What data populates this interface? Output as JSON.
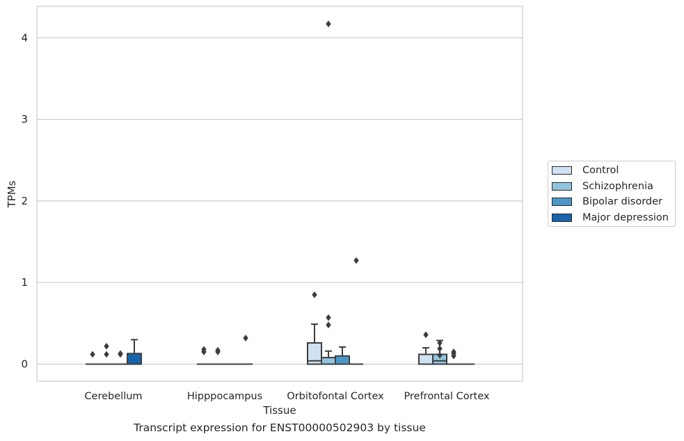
{
  "caption": "Transcript expression for ENST00000502903 by tissue",
  "chart_data": {
    "type": "box",
    "xlabel": "Tissue",
    "ylabel": "TPMs",
    "categories": [
      "Cerebellum",
      "Hipppocampus",
      "Orbitofontal Cortex",
      "Prefrontal Cortex"
    ],
    "ylim": [
      -0.2,
      4.38
    ],
    "yticks": [
      0,
      1,
      2,
      3,
      4
    ],
    "grid": "horizontal",
    "legend_position": "right",
    "series": [
      {
        "name": "Control",
        "color": "#cfe1f2",
        "boxes": [
          {
            "q1": 0,
            "median": 0,
            "q3": 0,
            "whisker_low": 0,
            "whisker_high": 0,
            "outliers": [
              0.12
            ]
          },
          {
            "q1": 0,
            "median": 0,
            "q3": 0,
            "whisker_low": 0,
            "whisker_high": 0,
            "outliers": [
              0.15,
              0.18
            ]
          },
          {
            "q1": 0,
            "median": 0.04,
            "q3": 0.26,
            "whisker_low": 0,
            "whisker_high": 0.49,
            "outliers": [
              0.85
            ]
          },
          {
            "q1": 0,
            "median": 0,
            "q3": 0.12,
            "whisker_low": 0,
            "whisker_high": 0.2,
            "outliers": [
              0.36
            ]
          }
        ]
      },
      {
        "name": "Schizophrenia",
        "color": "#93c4de",
        "boxes": [
          {
            "q1": 0,
            "median": 0,
            "q3": 0,
            "whisker_low": 0,
            "whisker_high": 0,
            "outliers": [
              0.12,
              0.22
            ]
          },
          {
            "q1": 0,
            "median": 0,
            "q3": 0,
            "whisker_low": 0,
            "whisker_high": 0,
            "outliers": [
              0.15,
              0.17
            ]
          },
          {
            "q1": 0,
            "median": 0,
            "q3": 0.08,
            "whisker_low": 0,
            "whisker_high": 0.16,
            "outliers": [
              0.48,
              0.57,
              4.17
            ]
          },
          {
            "q1": 0,
            "median": 0.04,
            "q3": 0.12,
            "whisker_low": 0,
            "whisker_high": 0.29,
            "outliers": [
              0.11,
              0.19,
              0.26
            ]
          }
        ]
      },
      {
        "name": "Bipolar disorder",
        "color": "#4a98c9",
        "boxes": [
          {
            "q1": 0,
            "median": 0,
            "q3": 0,
            "whisker_low": 0,
            "whisker_high": 0,
            "outliers": [
              0.12,
              0.13
            ]
          },
          {
            "q1": 0,
            "median": 0,
            "q3": 0,
            "whisker_low": 0,
            "whisker_high": 0,
            "outliers": []
          },
          {
            "q1": 0,
            "median": 0,
            "q3": 0.1,
            "whisker_low": 0,
            "whisker_high": 0.21,
            "outliers": []
          },
          {
            "q1": 0,
            "median": 0,
            "q3": 0,
            "whisker_low": 0,
            "whisker_high": 0,
            "outliers": [
              0.1,
              0.13,
              0.15
            ]
          }
        ]
      },
      {
        "name": "Major depression",
        "color": "#1764ab",
        "boxes": [
          {
            "q1": 0,
            "median": 0,
            "q3": 0.13,
            "whisker_low": 0,
            "whisker_high": 0.3,
            "outliers": []
          },
          {
            "q1": 0,
            "median": 0,
            "q3": 0,
            "whisker_low": 0,
            "whisker_high": 0,
            "outliers": [
              0.32
            ]
          },
          {
            "q1": 0,
            "median": 0,
            "q3": 0,
            "whisker_low": 0,
            "whisker_high": 0,
            "outliers": [
              1.27
            ]
          },
          {
            "q1": 0,
            "median": 0,
            "q3": 0,
            "whisker_low": 0,
            "whisker_high": 0,
            "outliers": []
          }
        ]
      }
    ]
  }
}
